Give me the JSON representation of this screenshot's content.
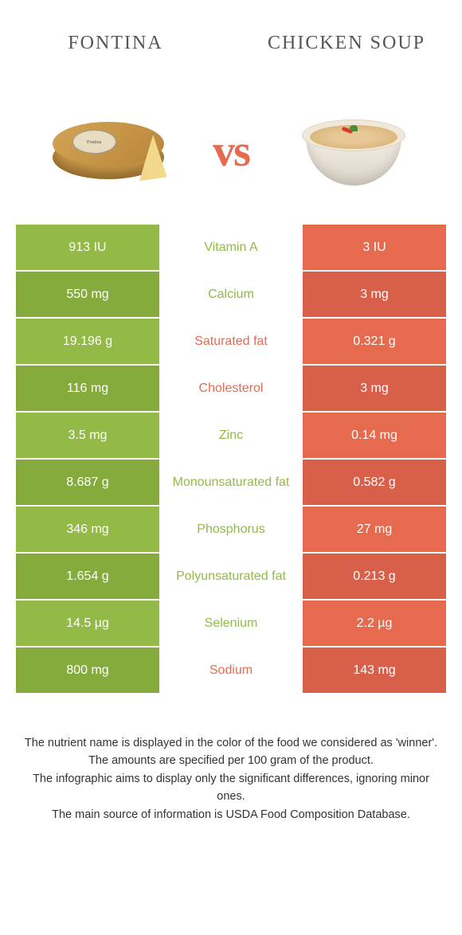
{
  "colors": {
    "left": "#93b946",
    "right": "#e56a4e",
    "left_dim": "#86ab3d",
    "right_dim": "#d8604a"
  },
  "foods": {
    "left": "Fontina",
    "right": "Chicken soup"
  },
  "vs": "vs",
  "rows": [
    {
      "nutrient": "Vitamin A",
      "left": "913 IU",
      "right": "3 IU",
      "winner": "left"
    },
    {
      "nutrient": "Calcium",
      "left": "550 mg",
      "right": "3 mg",
      "winner": "left"
    },
    {
      "nutrient": "Saturated fat",
      "left": "19.196 g",
      "right": "0.321 g",
      "winner": "right"
    },
    {
      "nutrient": "Cholesterol",
      "left": "116 mg",
      "right": "3 mg",
      "winner": "right"
    },
    {
      "nutrient": "Zinc",
      "left": "3.5 mg",
      "right": "0.14 mg",
      "winner": "left"
    },
    {
      "nutrient": "Monounsaturated fat",
      "left": "8.687 g",
      "right": "0.582 g",
      "winner": "left"
    },
    {
      "nutrient": "Phosphorus",
      "left": "346 mg",
      "right": "27 mg",
      "winner": "left"
    },
    {
      "nutrient": "Polyunsaturated fat",
      "left": "1.654 g",
      "right": "0.213 g",
      "winner": "left"
    },
    {
      "nutrient": "Selenium",
      "left": "14.5 µg",
      "right": "2.2 µg",
      "winner": "left"
    },
    {
      "nutrient": "Sodium",
      "left": "800 mg",
      "right": "143 mg",
      "winner": "right"
    }
  ],
  "footnotes": [
    "The nutrient name is displayed in the color of the food we considered as 'winner'.",
    "The amounts are specified per 100 gram of the product.",
    "The infographic aims to display only the significant differences, ignoring minor ones.",
    "The main source of information is USDA Food Composition Database."
  ]
}
